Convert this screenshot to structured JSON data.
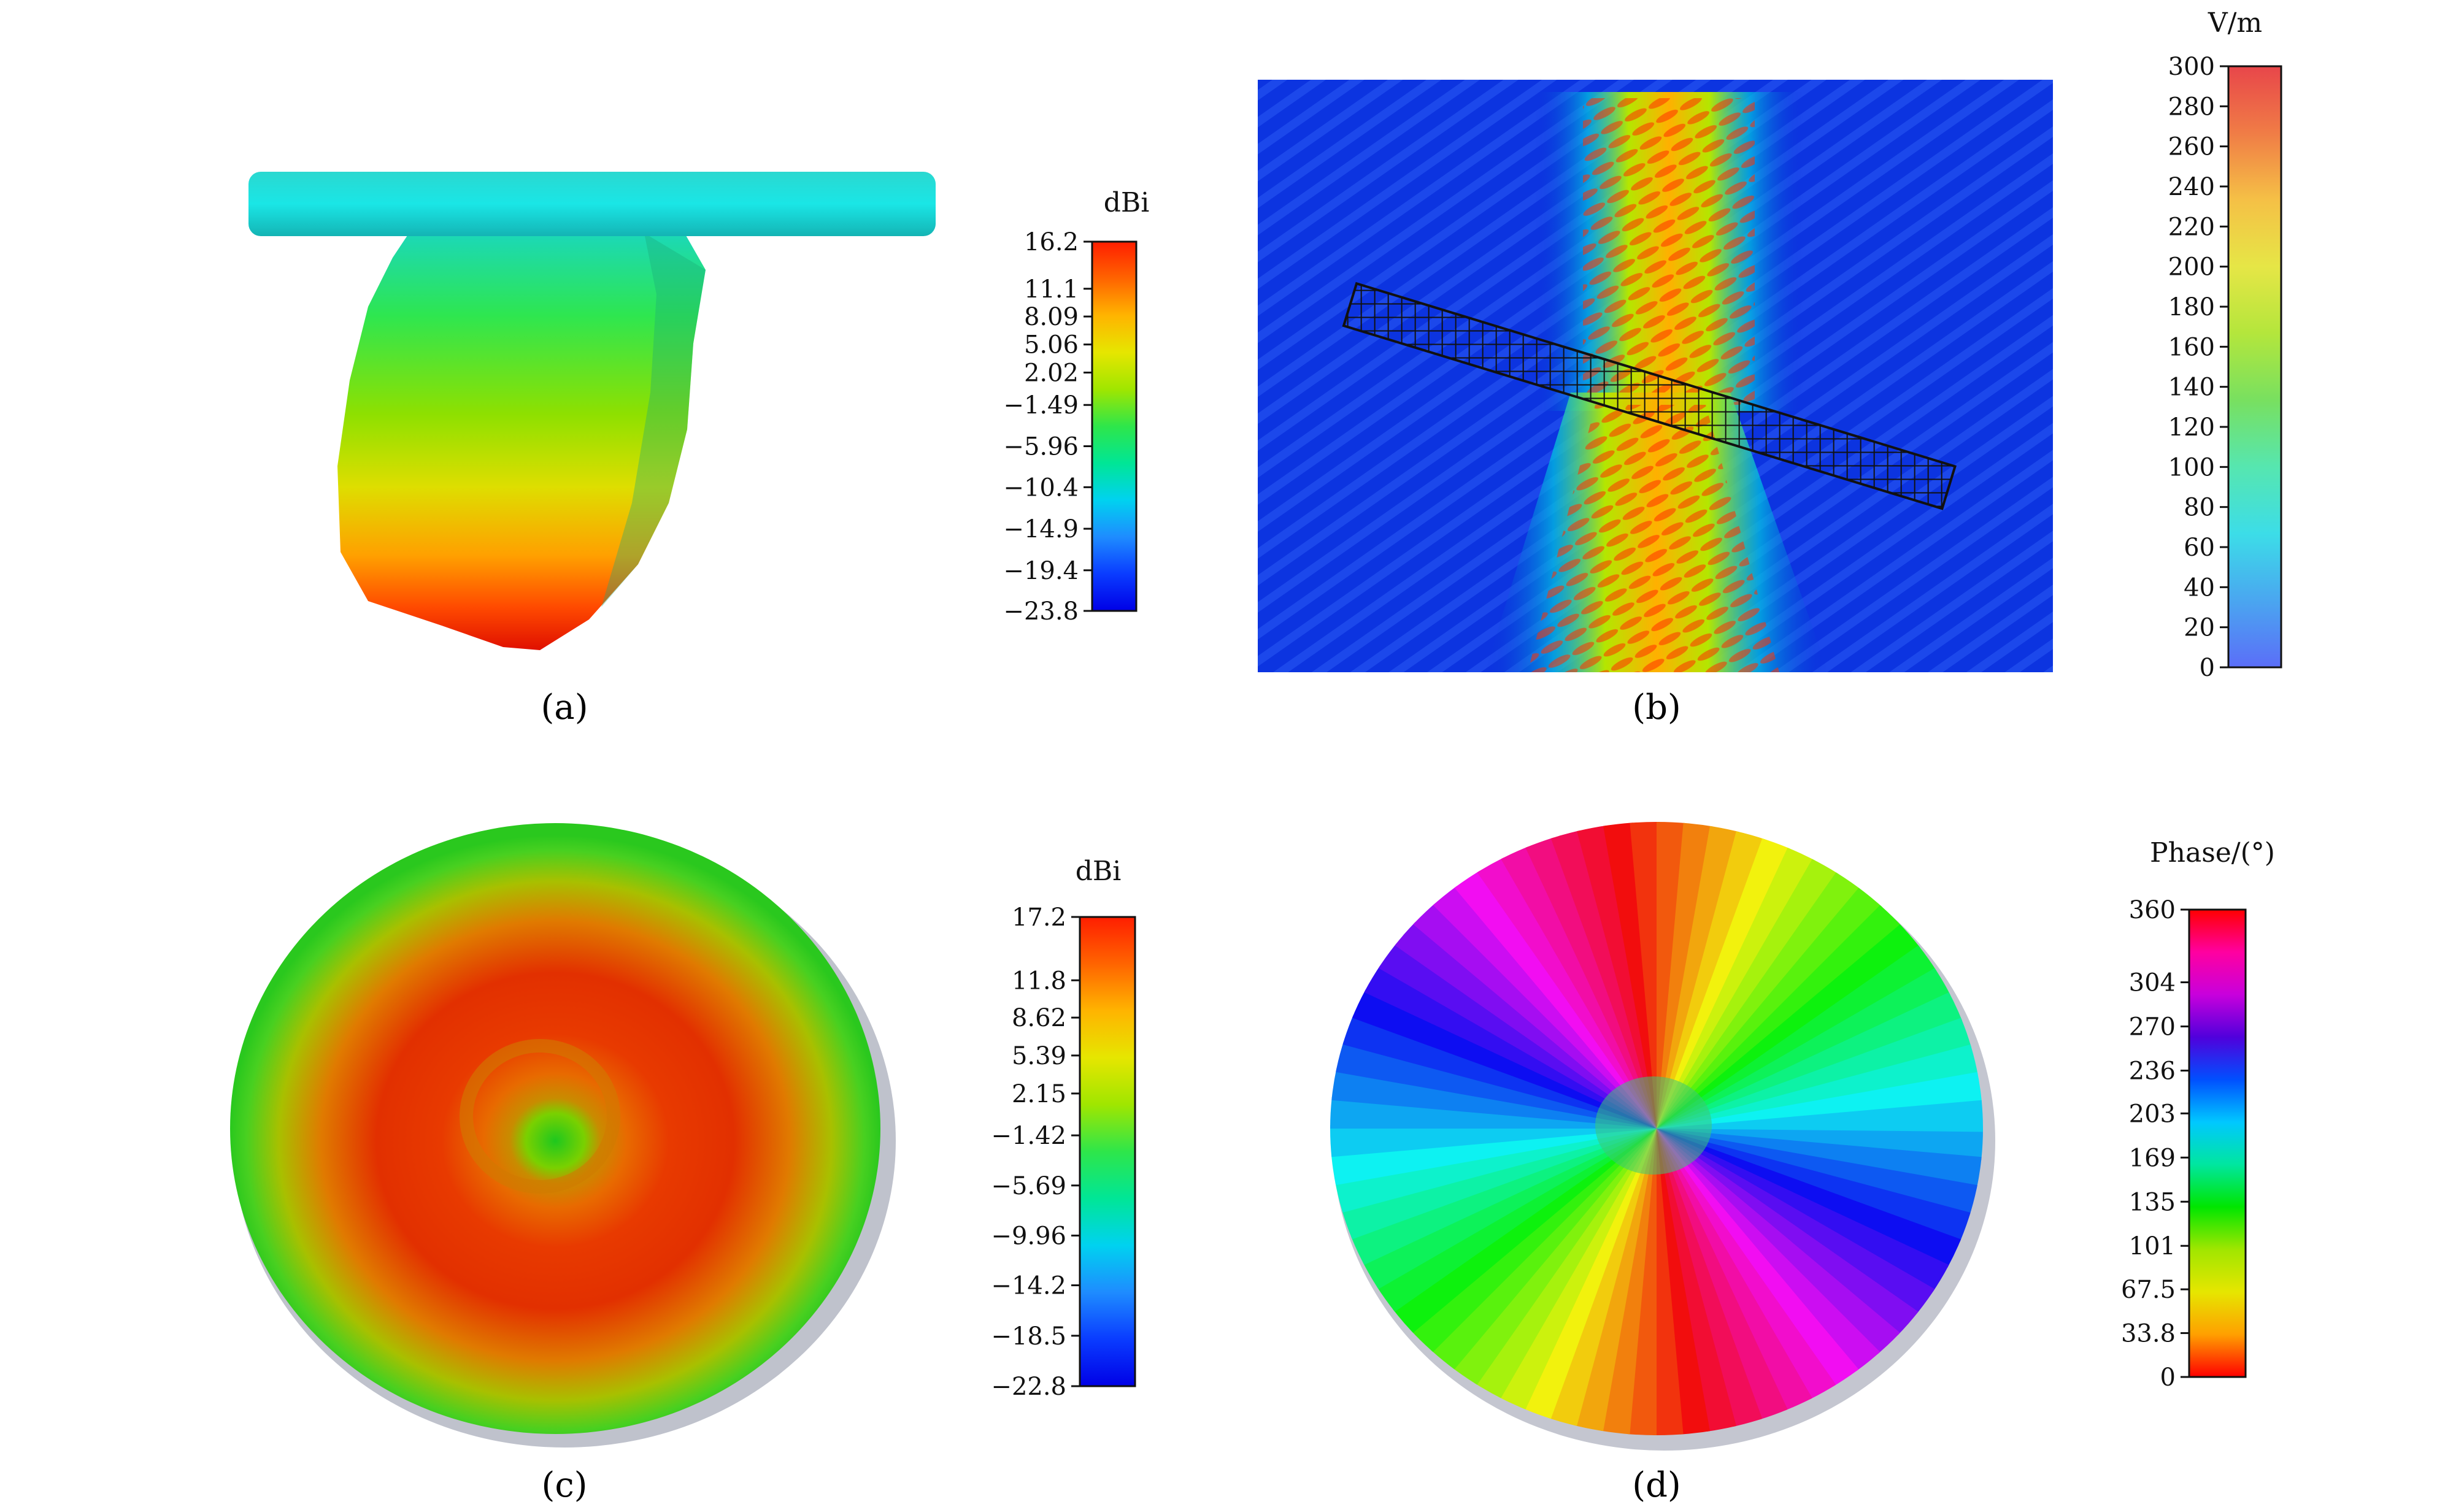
{
  "panels": {
    "a": {
      "caption": "(a)",
      "colorbar": {
        "unit": "dBi",
        "ticks": [
          "16.2",
          "11.1",
          "8.09",
          "5.06",
          "2.02",
          "−1.49",
          "−5.96",
          "−10.4",
          "−14.9",
          "−19.4",
          "−23.8"
        ],
        "tick_values": [
          16.2,
          11.1,
          8.09,
          5.06,
          2.02,
          -1.49,
          -5.96,
          -10.4,
          -14.9,
          -19.4,
          -23.8
        ],
        "range": [
          -23.8,
          16.2
        ],
        "colors": [
          "#0000e6",
          "#0a3cff",
          "#1e8cff",
          "#00d2f0",
          "#00e696",
          "#2ee64a",
          "#a0e600",
          "#e6e600",
          "#ffb400",
          "#ff6400",
          "#ff1e00"
        ]
      }
    },
    "b": {
      "caption": "(b)",
      "colorbar": {
        "unit": "V/m",
        "ticks": [
          "300",
          "280",
          "260",
          "240",
          "220",
          "200",
          "180",
          "160",
          "140",
          "120",
          "100",
          "80",
          "60",
          "40",
          "20",
          "0"
        ],
        "tick_values": [
          300,
          280,
          260,
          240,
          220,
          200,
          180,
          160,
          140,
          120,
          100,
          80,
          60,
          40,
          20,
          0
        ],
        "range": [
          0,
          300
        ],
        "colors": [
          "#5b6ef8",
          "#4aa6f0",
          "#3cdde8",
          "#56e6b0",
          "#78e060",
          "#b4e63c",
          "#e6e646",
          "#f5c046",
          "#f07c46",
          "#e8464a"
        ]
      }
    },
    "c": {
      "caption": "(c)",
      "colorbar": {
        "unit": "dBi",
        "ticks": [
          "17.2",
          "11.8",
          "8.62",
          "5.39",
          "2.15",
          "−1.42",
          "−5.69",
          "−9.96",
          "−14.2",
          "−18.5",
          "−22.8"
        ],
        "tick_values": [
          17.2,
          11.8,
          8.62,
          5.39,
          2.15,
          -1.42,
          -5.69,
          -9.96,
          -14.2,
          -18.5,
          -22.8
        ],
        "range": [
          -22.8,
          17.2
        ],
        "colors": [
          "#0000e6",
          "#0a3cff",
          "#1e8cff",
          "#00d2f0",
          "#00e696",
          "#2ee64a",
          "#a0e600",
          "#e6e600",
          "#ffb400",
          "#ff6400",
          "#ff1e00"
        ]
      }
    },
    "d": {
      "caption": "(d)",
      "colorbar": {
        "unit": "Phase/(°)",
        "ticks": [
          "360",
          "304",
          "270",
          "236",
          "203",
          "169",
          "135",
          "101",
          "67.5",
          "33.8",
          "0"
        ],
        "tick_values": [
          360,
          304,
          270,
          236,
          203,
          169,
          135,
          101,
          67.5,
          33.8,
          0
        ],
        "range": [
          0,
          360
        ],
        "colors": [
          "#ff0000",
          "#ffa000",
          "#e6e600",
          "#a0e600",
          "#00e600",
          "#00e6a0",
          "#00c8ff",
          "#0050ff",
          "#5000dc",
          "#c800dc",
          "#ff00a0",
          "#ff0000"
        ]
      }
    }
  }
}
